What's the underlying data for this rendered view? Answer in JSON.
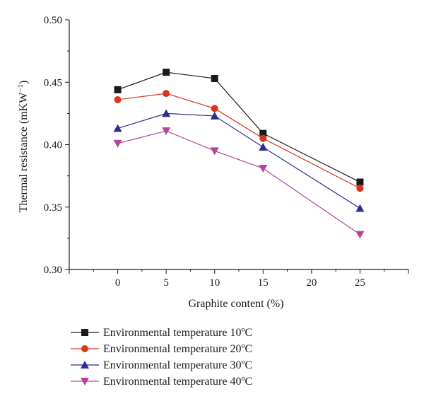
{
  "chart_data": {
    "type": "line",
    "xlabel": "Graphite content (%)",
    "ylabel": "Thermal resistance (mKW",
    "ylabel_sup": "−1",
    "ylabel_close": ")",
    "xlim": [
      -5,
      30
    ],
    "ylim": [
      0.3,
      0.5
    ],
    "x_ticks": [
      0,
      5,
      10,
      15,
      20,
      25
    ],
    "x_tick_labels": [
      "0",
      "5",
      "10",
      "15",
      "20",
      "25"
    ],
    "y_ticks": [
      0.3,
      0.35,
      0.4,
      0.45,
      0.5
    ],
    "y_tick_labels": [
      "0.30",
      "0.35",
      "0.40",
      "0.45",
      "0.50"
    ],
    "grid": false,
    "legend_position": "bottom",
    "series": [
      {
        "name": "Environmental temperature 10ºC",
        "marker": "square",
        "color": "#1a1a1a",
        "x": [
          0,
          5,
          10,
          15,
          25
        ],
        "values": [
          0.444,
          0.458,
          0.453,
          0.409,
          0.37
        ]
      },
      {
        "name": "Environmental temperature 20ºC",
        "marker": "circle",
        "color": "#d9361e",
        "x": [
          0,
          5,
          10,
          15,
          25
        ],
        "values": [
          0.436,
          0.441,
          0.429,
          0.405,
          0.365
        ]
      },
      {
        "name": "Environmental temperature 30ºC",
        "marker": "triangle-up",
        "color": "#2b2f8f",
        "x": [
          0,
          5,
          10,
          15,
          25
        ],
        "values": [
          0.413,
          0.425,
          0.423,
          0.398,
          0.349
        ]
      },
      {
        "name": "Environmental temperature 40ºC",
        "marker": "triangle-down",
        "color": "#b5459b",
        "x": [
          0,
          5,
          10,
          15,
          25
        ],
        "values": [
          0.401,
          0.411,
          0.395,
          0.381,
          0.328
        ]
      }
    ]
  }
}
